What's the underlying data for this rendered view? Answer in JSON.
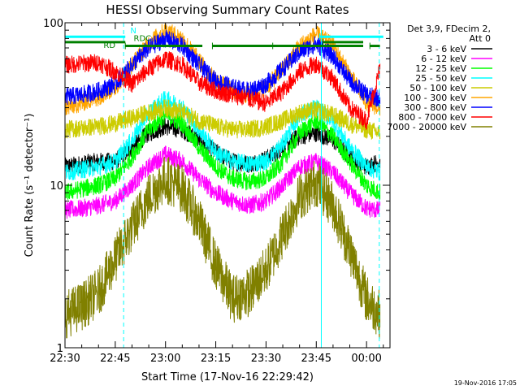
{
  "chart_data": {
    "type": "line",
    "title": "HESSI Observing Summary Count Rates",
    "xlabel": "Start Time (17-Nov-16 22:29:42)",
    "ylabel": "Count Rate (s⁻¹ detector⁻¹)",
    "yscale": "log",
    "ylim": [
      1,
      100
    ],
    "xlim_minutes_from_2230": [
      0,
      97
    ],
    "x_ticks": [
      {
        "m": 0,
        "label": "22:30"
      },
      {
        "m": 15,
        "label": "22:45"
      },
      {
        "m": 30,
        "label": "23:00"
      },
      {
        "m": 45,
        "label": "23:15"
      },
      {
        "m": 60,
        "label": "23:30"
      },
      {
        "m": 75,
        "label": "23:45"
      },
      {
        "m": 90,
        "label": "00:00"
      }
    ],
    "y_ticks": [
      {
        "v": 1,
        "label": "1"
      },
      {
        "v": 10,
        "label": "10"
      },
      {
        "v": 100,
        "label": "100"
      }
    ],
    "legend_header": [
      "Det 3,9, FDecim 2,",
      "Att 0"
    ],
    "legend_position": "right, outside plot",
    "series": [
      {
        "name": "3 - 6 keV",
        "color": "#000000",
        "x": [
          0,
          5,
          10,
          15,
          20,
          25,
          30,
          35,
          40,
          45,
          50,
          55,
          60,
          65,
          70,
          75,
          80,
          85,
          90,
          94
        ],
        "y": [
          13,
          13.5,
          14,
          14,
          17,
          21,
          23,
          22,
          19,
          16,
          14,
          13.5,
          14.5,
          17,
          20,
          21,
          19,
          15,
          13,
          14
        ]
      },
      {
        "name": "6 - 12 keV",
        "color": "#ff00ff",
        "x": [
          0,
          5,
          10,
          15,
          20,
          25,
          30,
          35,
          40,
          45,
          50,
          55,
          60,
          65,
          70,
          75,
          80,
          85,
          90,
          94
        ],
        "y": [
          7,
          7.2,
          7.5,
          8,
          10,
          13,
          15.5,
          14,
          11,
          9,
          8,
          7.5,
          8,
          10,
          13,
          14,
          12,
          9,
          7.2,
          7
        ]
      },
      {
        "name": "12 - 25 keV",
        "color": "#00ff00",
        "x": [
          0,
          5,
          10,
          15,
          20,
          25,
          30,
          35,
          40,
          45,
          50,
          55,
          60,
          65,
          70,
          75,
          80,
          85,
          90,
          94
        ],
        "y": [
          9,
          9.5,
          10,
          11,
          15,
          22,
          27,
          24,
          17,
          13,
          11,
          10.5,
          11,
          14,
          21,
          25,
          20,
          14,
          10,
          9
        ]
      },
      {
        "name": "25 - 50 keV",
        "color": "#00ffff",
        "x": [
          0,
          5,
          10,
          15,
          20,
          25,
          30,
          35,
          40,
          45,
          50,
          55,
          60,
          65,
          70,
          75,
          80,
          85,
          90,
          94
        ],
        "y": [
          12,
          12.5,
          13,
          14,
          19,
          28,
          34,
          30,
          22,
          16,
          14,
          13.5,
          14,
          18,
          27,
          30,
          25,
          17,
          13,
          12
        ]
      },
      {
        "name": "50 - 100 keV",
        "color": "#cccc00",
        "x": [
          0,
          5,
          10,
          15,
          20,
          25,
          30,
          35,
          40,
          45,
          50,
          55,
          60,
          65,
          70,
          75,
          80,
          85,
          90,
          94
        ],
        "y": [
          22,
          22.5,
          23,
          24,
          26,
          28,
          30,
          28,
          25,
          23,
          22,
          22,
          23,
          25,
          28,
          29,
          27,
          24,
          22,
          21
        ]
      },
      {
        "name": "100 - 300 keV",
        "color": "#ffa500",
        "x": [
          0,
          5,
          10,
          15,
          20,
          25,
          30,
          35,
          40,
          45,
          50,
          55,
          60,
          65,
          70,
          75,
          80,
          85,
          90,
          94
        ],
        "y": [
          30,
          32,
          35,
          40,
          55,
          75,
          90,
          80,
          58,
          44,
          38,
          36,
          40,
          52,
          72,
          85,
          72,
          48,
          32,
          30
        ]
      },
      {
        "name": "300 - 800 keV",
        "color": "#0000ff",
        "x": [
          0,
          5,
          10,
          15,
          20,
          25,
          30,
          35,
          40,
          45,
          50,
          55,
          60,
          65,
          70,
          75,
          80,
          85,
          90,
          94
        ],
        "y": [
          35,
          36,
          38,
          42,
          55,
          70,
          80,
          72,
          55,
          44,
          40,
          38,
          42,
          52,
          66,
          74,
          62,
          44,
          36,
          34
        ]
      },
      {
        "name": "800 - 7000 keV",
        "color": "#ff0000",
        "x": [
          0,
          5,
          10,
          15,
          20,
          25,
          30,
          35,
          40,
          45,
          50,
          55,
          60,
          65,
          70,
          75,
          80,
          85,
          90,
          94
        ],
        "y": [
          55,
          56,
          57,
          50,
          42,
          52,
          60,
          55,
          43,
          38,
          36,
          34,
          32,
          38,
          50,
          56,
          45,
          30,
          25,
          52
        ]
      },
      {
        "name": "7000 - 20000 keV",
        "color": "#808000",
        "x": [
          0,
          5,
          10,
          15,
          20,
          25,
          30,
          35,
          40,
          45,
          50,
          55,
          60,
          65,
          70,
          75,
          80,
          85,
          90,
          94
        ],
        "y": [
          1.6,
          1.8,
          2.2,
          3.5,
          5.5,
          8.5,
          11,
          9.5,
          6,
          3.2,
          2,
          2.2,
          3,
          5,
          8.5,
          10.5,
          7.5,
          4,
          2,
          1.6
        ]
      }
    ],
    "flag_bars": [
      {
        "color": "#00ffff",
        "y": 82,
        "segments": [
          [
            0,
            18
          ],
          [
            76,
            95
          ]
        ]
      },
      {
        "color": "#008000",
        "y": 76,
        "segments": [
          [
            0,
            18
          ],
          [
            77,
            89
          ]
        ]
      },
      {
        "color": "#008000",
        "y": 72,
        "segments": [
          [
            18,
            41
          ],
          [
            44,
            62
          ],
          [
            62,
            89
          ],
          [
            91,
            94
          ]
        ]
      }
    ],
    "flag_labels": [
      {
        "text": "N",
        "m": 19.5,
        "y": 86,
        "color": "#00ffff"
      },
      {
        "text": "RDC",
        "m": 20.5,
        "y": 77,
        "color": "#008000"
      },
      {
        "text": "RD",
        "m": 11.5,
        "y": 70,
        "color": "#008000"
      }
    ],
    "vertical_lines": [
      {
        "m": 17.5,
        "color": "#00ffff",
        "style": "dashed"
      },
      {
        "m": 76.5,
        "color": "#00ffff",
        "style": "solid"
      },
      {
        "m": 93.8,
        "color": "#00ffff",
        "style": "dashed"
      }
    ]
  },
  "footer": {
    "timestamp": "19-Nov-2016 17:05"
  },
  "layout_colors": {
    "axes": "#000000",
    "background": "#ffffff"
  }
}
